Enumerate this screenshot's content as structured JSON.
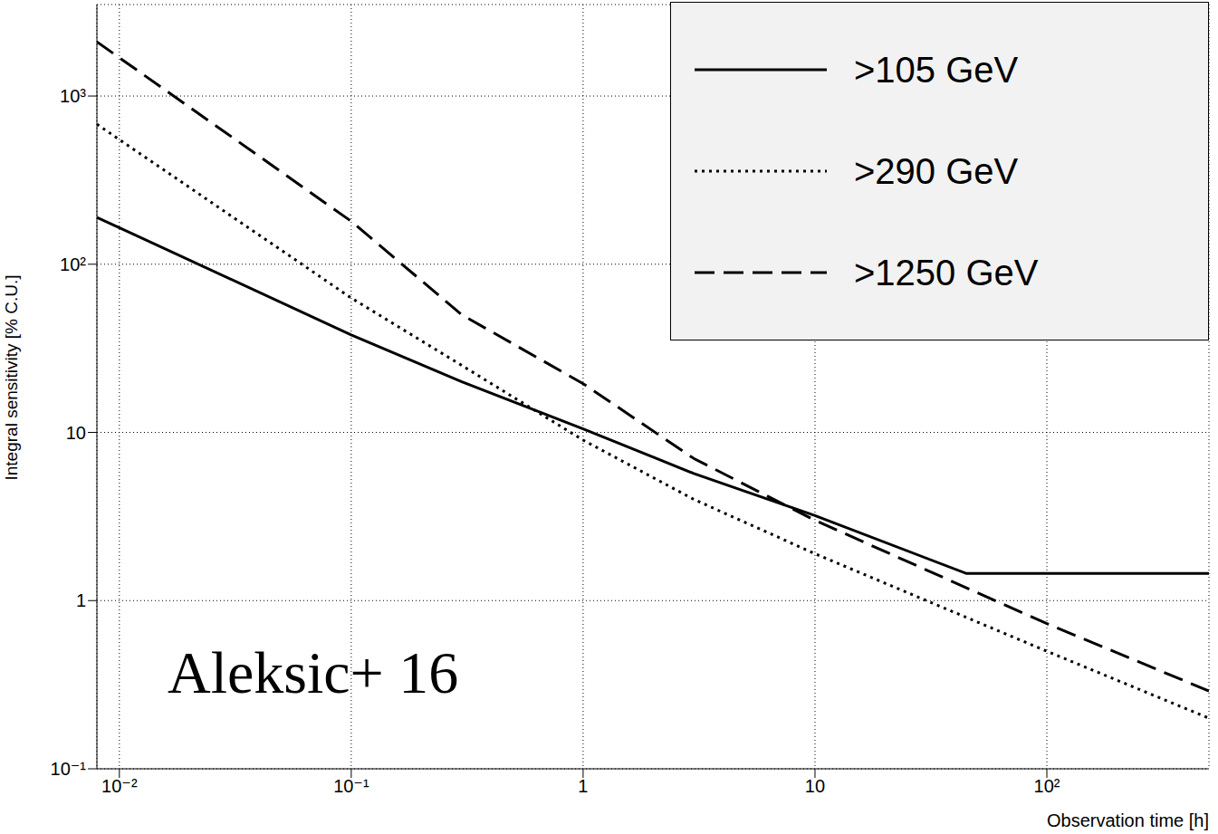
{
  "chart_data": {
    "type": "line",
    "log": true,
    "grid": true,
    "legend": "top right",
    "x_label": "Observation time [h]",
    "y_label": "Integral sensitivity [% C.U.]",
    "annotation": "Aleksic+ 16",
    "xlim": [
      0.008,
      500
    ],
    "xticks": [
      {
        "value": 0.01,
        "label": "10⁻²"
      },
      {
        "value": 0.1,
        "label": "10⁻¹"
      },
      1,
      10,
      {
        "value": 100,
        "label": "10²"
      }
    ],
    "ylim": [
      0.1,
      3500
    ],
    "yticks": [
      {
        "value": 0.1,
        "label": "10⁻¹"
      },
      1,
      10,
      {
        "value": 100,
        "label": "10²"
      },
      {
        "value": 1000,
        "label": "10³"
      }
    ],
    "series": [
      {
        "name": ">105 GeV",
        "color": "#000000",
        "line_style": "solid",
        "x": [
          0.008,
          0.1,
          0.3,
          1,
          3,
          10,
          45,
          500
        ],
        "values": [
          190,
          38,
          20,
          10.5,
          5.7,
          3.2,
          1.45,
          1.45
        ]
      },
      {
        "name": ">290 GeV",
        "color": "#000000",
        "line_style": "dotted",
        "x": [
          0.008,
          0.1,
          0.3,
          1,
          3,
          10,
          100,
          500
        ],
        "values": [
          680,
          63,
          25,
          9,
          4,
          1.9,
          0.5,
          0.2
        ]
      },
      {
        "name": ">1250 GeV",
        "color": "#000000",
        "line_style": "dashed",
        "x": [
          0.008,
          0.1,
          0.3,
          1,
          3,
          10,
          100,
          500
        ],
        "values": [
          2100,
          180,
          50,
          19.5,
          7,
          3,
          0.73,
          0.29
        ]
      }
    ]
  }
}
